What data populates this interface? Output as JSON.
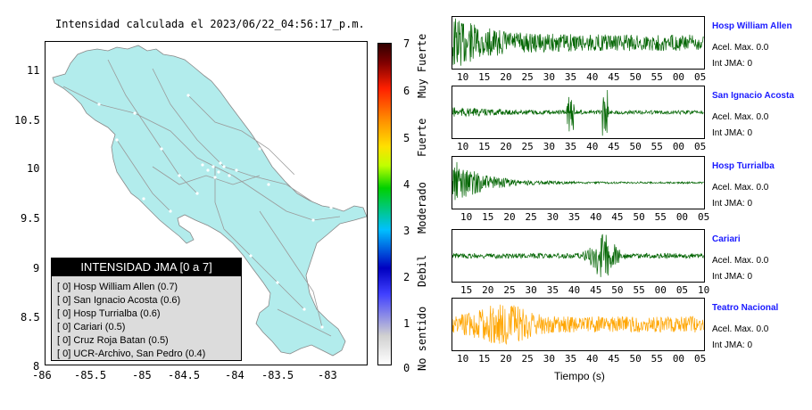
{
  "map": {
    "title": "Intensidad calculada el 2023/06/22_04:56:17_p.m.",
    "x_ticks": [
      "-86",
      "-85.5",
      "-85",
      "-84.5",
      "-84",
      "-83.5",
      "-83"
    ],
    "y_ticks": [
      "11",
      "10.5",
      "10",
      "9.5",
      "9",
      "8.5",
      "8"
    ],
    "land_color": "#b2ecec"
  },
  "legend": {
    "title": "INTENSIDAD JMA [0 a 7]",
    "rows": [
      "[ 0]  Hosp William Allen (0.7)",
      "[ 0]  San Ignacio Acosta (0.6)",
      "[ 0]  Hosp Turrialba (0.6)",
      "[ 0]  Cariari (0.5)",
      "[ 0]  Cruz Roja Batan (0.5)",
      "[ 0]  UCR-Archivo, San Pedro (0.4)"
    ]
  },
  "colorbar": {
    "ticks": [
      "7",
      "6",
      "5",
      "4",
      "3",
      "2",
      "1",
      "0"
    ],
    "words": [
      "Muy Fuerte",
      "Fuerte",
      "Moderado",
      "Debil",
      "No sentido"
    ]
  },
  "stations": [
    {
      "name": "Hosp William Allen",
      "accel": "Acel. Max. 0.0",
      "int": "Int JMA: 0",
      "color": "#006400",
      "ticks": [
        "10",
        "15",
        "20",
        "25",
        "30",
        "35",
        "40",
        "45",
        "50",
        "55",
        "00",
        "05"
      ]
    },
    {
      "name": "San Ignacio Acosta",
      "accel": "Acel. Max. 0.0",
      "int": "Int JMA: 0",
      "color": "#006400",
      "ticks": [
        "10",
        "15",
        "20",
        "25",
        "30",
        "35",
        "40",
        "45",
        "50",
        "55",
        "00",
        "05"
      ]
    },
    {
      "name": "Hosp Turrialba",
      "accel": "Acel. Max. 0.0",
      "int": "Int JMA: 0",
      "color": "#006400",
      "ticks": [
        "10",
        "15",
        "20",
        "25",
        "30",
        "35",
        "40",
        "45",
        "50",
        "55",
        "00",
        "05"
      ]
    },
    {
      "name": "Cariari",
      "accel": "Acel. Max. 0.0",
      "int": "Int JMA: 0",
      "color": "#006400",
      "ticks": [
        "15",
        "20",
        "25",
        "30",
        "35",
        "40",
        "45",
        "50",
        "55",
        "00",
        "05",
        "10"
      ]
    },
    {
      "name": "Teatro Nacional",
      "accel": "Acel. Max. 0.0",
      "int": "Int JMA: 0",
      "color": "#ffa500",
      "ticks": [
        "10",
        "15",
        "20",
        "25",
        "30",
        "35",
        "40",
        "45",
        "50",
        "55",
        "00",
        "05"
      ]
    }
  ],
  "xaxis_title": "Tiempo (s)",
  "chart_data": {
    "type": "line",
    "title": "Intensidad calculada el 2023/06/22_04:56:17_p.m.",
    "xlabel": "Tiempo (s)",
    "series": [
      {
        "name": "Hosp William Allen",
        "values": []
      },
      {
        "name": "San Ignacio Acosta",
        "values": []
      },
      {
        "name": "Hosp Turrialba",
        "values": []
      },
      {
        "name": "Cariari",
        "values": []
      },
      {
        "name": "Teatro Nacional",
        "values": []
      }
    ],
    "map_xlim": [
      -86,
      -82.55
    ],
    "map_ylim": [
      8,
      11.3
    ],
    "colorbar_range": [
      0,
      7
    ]
  }
}
